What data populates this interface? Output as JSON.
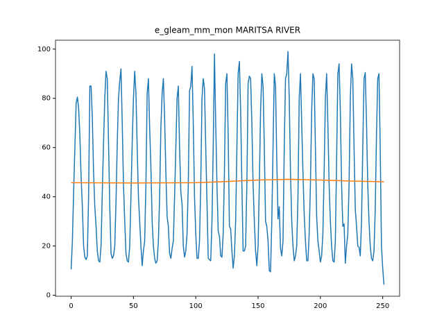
{
  "chart_data": {
    "type": "line",
    "title": "e_gleam_mm_mon MARITSA RIVER",
    "x": [
      0,
      1,
      2,
      3,
      4,
      5,
      6,
      7,
      8,
      9,
      10,
      11,
      12,
      13,
      14,
      15,
      16,
      17,
      18,
      19,
      20,
      21,
      22,
      23,
      24,
      25,
      26,
      27,
      28,
      29,
      30,
      31,
      32,
      33,
      34,
      35,
      36,
      37,
      38,
      39,
      40,
      41,
      42,
      43,
      44,
      45,
      46,
      47,
      48,
      49,
      50,
      51,
      52,
      53,
      54,
      55,
      56,
      57,
      58,
      59,
      60,
      61,
      62,
      63,
      64,
      65,
      66,
      67,
      68,
      69,
      70,
      71,
      72,
      73,
      74,
      75,
      76,
      77,
      78,
      79,
      80,
      81,
      82,
      83,
      84,
      85,
      86,
      87,
      88,
      89,
      90,
      91,
      92,
      93,
      94,
      95,
      96,
      97,
      98,
      99,
      100,
      101,
      102,
      103,
      104,
      105,
      106,
      107,
      108,
      109,
      110,
      111,
      112,
      113,
      114,
      115,
      116,
      117,
      118,
      119,
      120,
      121,
      122,
      123,
      124,
      125,
      126,
      127,
      128,
      129,
      130,
      131,
      132,
      133,
      134,
      135,
      136,
      137,
      138,
      139,
      140,
      141,
      142,
      143,
      144,
      145,
      146,
      147,
      148,
      149,
      150,
      151,
      152,
      153,
      154,
      155,
      156,
      157,
      158,
      159,
      160,
      161,
      162,
      163,
      164,
      165,
      166,
      167,
      168,
      169,
      170,
      171,
      172,
      173,
      174,
      175,
      176,
      177,
      178,
      179,
      180,
      181,
      182,
      183,
      184,
      185,
      186,
      187,
      188,
      189,
      190,
      191,
      192,
      193,
      194,
      195,
      196,
      197,
      198,
      199,
      200,
      201,
      202,
      203,
      204,
      205,
      206,
      207,
      208,
      209,
      210,
      211,
      212,
      213,
      214,
      215,
      216,
      217,
      218,
      219,
      220,
      221,
      222,
      223,
      224,
      225,
      226,
      227,
      228,
      229,
      230,
      231,
      232,
      233,
      234,
      235,
      236,
      237,
      238,
      239,
      240,
      241,
      242,
      243,
      244,
      245,
      246,
      247,
      248,
      249,
      250,
      251
    ],
    "series": [
      {
        "color": "#1f77b4",
        "values": [
          10.5,
          22,
          42,
          60,
          78,
          80.5,
          76,
          65,
          48,
          36,
          20,
          15.5,
          14.5,
          16,
          40,
          85,
          85,
          72,
          50,
          36,
          28,
          18,
          14,
          13.5,
          20,
          42,
          62,
          80,
          91,
          88,
          62,
          36,
          17,
          15,
          16,
          20,
          38,
          62,
          80,
          87,
          92,
          70,
          45,
          30,
          17,
          14,
          13.5,
          20,
          40,
          62,
          80,
          91,
          82,
          60,
          40,
          30,
          20,
          12,
          18,
          22,
          45,
          82,
          88,
          68,
          52,
          30,
          20,
          15,
          13,
          14,
          22,
          40,
          68,
          82,
          88,
          72,
          50,
          32,
          28,
          17,
          15,
          19,
          22,
          40,
          60,
          80,
          85,
          60,
          42,
          37,
          20,
          15.5,
          18,
          25,
          45,
          83,
          85,
          93,
          70,
          40,
          25,
          15,
          15,
          22,
          45,
          80,
          88,
          84,
          60,
          38,
          15,
          14.5,
          14,
          30,
          60,
          98,
          70,
          45,
          26,
          24,
          16,
          15.5,
          25,
          50,
          86,
          90,
          65,
          28,
          27,
          18,
          11,
          16,
          30,
          60,
          90,
          95,
          75,
          45,
          18,
          18,
          20,
          45,
          86,
          89,
          88,
          70,
          45,
          30,
          18,
          12,
          20,
          45,
          75,
          90,
          85,
          60,
          30,
          28,
          22,
          10,
          9.5,
          30,
          60,
          90,
          85,
          55,
          31,
          36,
          19,
          16,
          22,
          60,
          88,
          90,
          99,
          80,
          50,
          30,
          20,
          14,
          16,
          20,
          40,
          80,
          90,
          70,
          50,
          33,
          22,
          14,
          14,
          25,
          45,
          75,
          90,
          88,
          60,
          32,
          22,
          18,
          13.5,
          16,
          25,
          50,
          80,
          90,
          70,
          45,
          30,
          20,
          14,
          13.5,
          22,
          55,
          90,
          94,
          75,
          45,
          28,
          29,
          13,
          20,
          25,
          45,
          80,
          94,
          88,
          60,
          35,
          28,
          20,
          19.5,
          16,
          30,
          60,
          88,
          90.5,
          70,
          45,
          30,
          20,
          15,
          14,
          18,
          35,
          65,
          88,
          90,
          60,
          20,
          11,
          4.3
        ]
      },
      {
        "color": "#ff7f0e",
        "x": [
          0,
          50,
          100,
          125,
          150,
          175,
          200,
          225,
          251
        ],
        "values": [
          45.7,
          45.6,
          45.7,
          46.2,
          46.8,
          47.1,
          46.8,
          46.4,
          46.1
        ]
      }
    ],
    "xlim": [
      -12.55,
      263.55
    ],
    "ylim": [
      -0.4,
      103.6
    ],
    "xticks": [
      0,
      50,
      100,
      150,
      200,
      250
    ],
    "yticks": [
      0,
      20,
      40,
      60,
      80,
      100
    ]
  }
}
